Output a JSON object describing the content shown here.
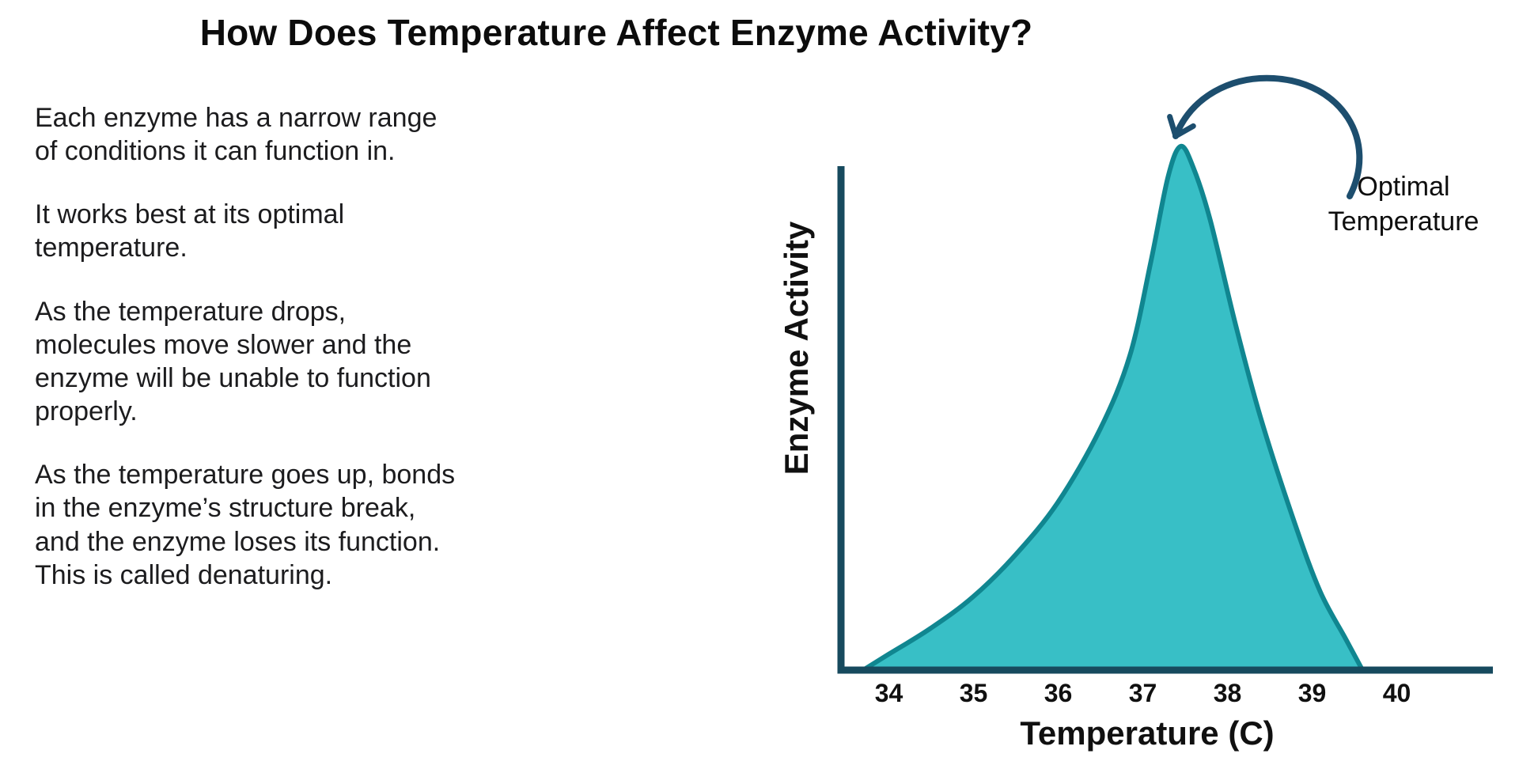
{
  "page_title": "How Does Temperature Affect Enzyme Activity?",
  "paragraphs": [
    "Each enzyme has a narrow range\nof conditions it can function in.",
    "It works best at its optimal\ntemperature.",
    "As the temperature drops,\nmolecules move slower and the\nenzyme will be unable to function\nproperly.",
    "As the temperature goes up, bonds\nin the enzyme’s structure break,\nand the enzyme loses its function.\nThis is called denaturing."
  ],
  "chart_data": {
    "type": "area",
    "title": "How Does Temperature Affect Enzyme Activity?",
    "xlabel": "Temperature (C)",
    "ylabel": "Enzyme Activity",
    "xticks": [
      "34",
      "35",
      "36",
      "37",
      "38",
      "39",
      "40"
    ],
    "xlim": [
      33.4,
      40.7
    ],
    "ylim": [
      0,
      100
    ],
    "grid": false,
    "legend": false,
    "annotation": {
      "label": "Optimal\nTemperature",
      "points_to_x": 37.4
    },
    "points": [
      [
        33.7,
        0
      ],
      [
        34.0,
        3
      ],
      [
        34.5,
        8
      ],
      [
        35.0,
        14
      ],
      [
        35.5,
        22
      ],
      [
        36.0,
        32
      ],
      [
        36.5,
        46
      ],
      [
        36.85,
        60
      ],
      [
        37.1,
        78
      ],
      [
        37.3,
        94
      ],
      [
        37.45,
        100
      ],
      [
        37.6,
        96
      ],
      [
        37.8,
        86
      ],
      [
        38.1,
        66
      ],
      [
        38.4,
        48
      ],
      [
        38.8,
        28
      ],
      [
        39.1,
        15
      ],
      [
        39.4,
        6
      ],
      [
        39.6,
        0
      ]
    ],
    "colors": {
      "area_fill": "#38bfc6",
      "curve_stroke": "#108690",
      "axis": "#174a5e",
      "arrow": "#1d4e6e",
      "text": "#111111",
      "background": "#ffffff"
    }
  }
}
